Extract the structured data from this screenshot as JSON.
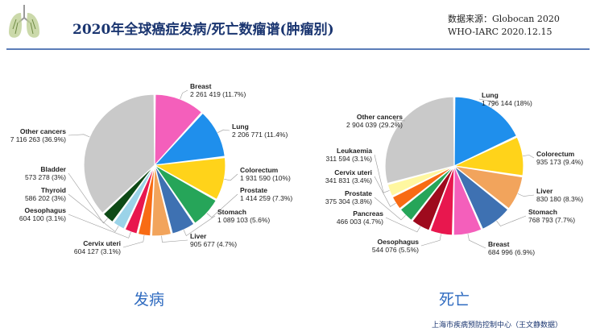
{
  "header": {
    "title": "2020年全球癌症发病/死亡数瘤谱(肿瘤别)",
    "source_line1": "数据来源：Globocan 2020",
    "source_line2": "WHO-IARC  2020.12.15"
  },
  "captions": {
    "incidence": "发病",
    "mortality": "死亡"
  },
  "footer": "上海市疾病预防控制中心（王文静数据）",
  "colors": {
    "title": "#1a3570",
    "caption": "#2f6bc0",
    "rule": "#5b7db8"
  },
  "chart_data": [
    {
      "type": "pie",
      "title": "",
      "slices": [
        {
          "name": "Breast",
          "value_text": "2 261 419 (11.7%)",
          "value": 2261419,
          "percent": 11.7,
          "color": "#f45fbb"
        },
        {
          "name": "Lung",
          "value_text": "2 206 771 (11.4%)",
          "value": 2206771,
          "percent": 11.4,
          "color": "#1f8fec"
        },
        {
          "name": "Colorectum",
          "value_text": "1 931 590 (10%)",
          "value": 1931590,
          "percent": 10.0,
          "color": "#ffd31a"
        },
        {
          "name": "Prostate",
          "value_text": "1 414 259 (7.3%)",
          "value": 1414259,
          "percent": 7.3,
          "color": "#26a559"
        },
        {
          "name": "Stomach",
          "value_text": "1 089 103 (5.6%)",
          "value": 1089103,
          "percent": 5.6,
          "color": "#3e71b2"
        },
        {
          "name": "Liver",
          "value_text": "905 677 (4.7%)",
          "value": 905677,
          "percent": 4.7,
          "color": "#f2a45c"
        },
        {
          "name": "Cervix uteri",
          "value_text": "604 127 (3.1%)",
          "value": 604127,
          "percent": 3.1,
          "color": "#f86b14"
        },
        {
          "name": "Oesophagus",
          "value_text": "604 100 (3.1%)",
          "value": 604100,
          "percent": 3.1,
          "color": "#e8174e"
        },
        {
          "name": "Thyroid",
          "value_text": "586 202 (3%)",
          "value": 586202,
          "percent": 3.0,
          "color": "#9bd3e8"
        },
        {
          "name": "Bladder",
          "value_text": "573 278 (3%)",
          "value": 573278,
          "percent": 3.0,
          "color": "#0e4a16"
        },
        {
          "name": "Other cancers",
          "value_text": "7 116 263 (36.9%)",
          "value": 7116263,
          "percent": 36.9,
          "color": "#c9c9c9"
        }
      ]
    },
    {
      "type": "pie",
      "title": "",
      "slices": [
        {
          "name": "Lung",
          "value_text": "1 796 144 (18%)",
          "value": 1796144,
          "percent": 18.0,
          "color": "#1f8fec"
        },
        {
          "name": "Colorectum",
          "value_text": "935 173 (9.4%)",
          "value": 935173,
          "percent": 9.4,
          "color": "#ffd31a"
        },
        {
          "name": "Liver",
          "value_text": "830 180 (8.3%)",
          "value": 830180,
          "percent": 8.3,
          "color": "#f2a45c"
        },
        {
          "name": "Stomach",
          "value_text": "768 793 (7.7%)",
          "value": 768793,
          "percent": 7.7,
          "color": "#3e71b2"
        },
        {
          "name": "Breast",
          "value_text": "684 996 (6.9%)",
          "value": 684996,
          "percent": 6.9,
          "color": "#f45fbb"
        },
        {
          "name": "Oesophagus",
          "value_text": "544 076 (5.5%)",
          "value": 544076,
          "percent": 5.5,
          "color": "#e8174e"
        },
        {
          "name": "Pancreas",
          "value_text": "466 003 (4.7%)",
          "value": 466003,
          "percent": 4.7,
          "color": "#9e0a1d"
        },
        {
          "name": "Prostate",
          "value_text": "375 304 (3.8%)",
          "value": 375304,
          "percent": 3.8,
          "color": "#26a559"
        },
        {
          "name": "Cervix uteri",
          "value_text": "341 831 (3.4%)",
          "value": 341831,
          "percent": 3.4,
          "color": "#f86b14"
        },
        {
          "name": "Leukaemia",
          "value_text": "311 594 (3.1%)",
          "value": 311594,
          "percent": 3.1,
          "color": "#fff7a0"
        },
        {
          "name": "Other cancers",
          "value_text": "2 904 039 (29.2%)",
          "value": 2904039,
          "percent": 29.2,
          "color": "#c9c9c9"
        }
      ]
    }
  ]
}
